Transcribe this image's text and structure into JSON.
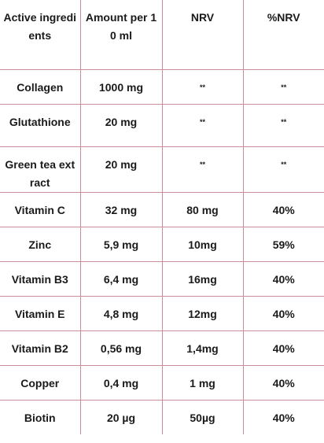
{
  "table": {
    "headers": [
      "Active ingredients",
      "Amount per 10 ml",
      "NRV",
      "%NRV"
    ],
    "rows": [
      [
        "Collagen",
        "1000 mg",
        "**",
        "**"
      ],
      [
        "Glutathione",
        "20 mg",
        "**",
        "**"
      ],
      [
        "Green tea extract",
        "20 mg",
        "**",
        "**"
      ],
      [
        "Vitamin C",
        "32 mg",
        "80 mg",
        "40%"
      ],
      [
        "Zinc",
        "5,9 mg",
        "10mg",
        "59%"
      ],
      [
        "Vitamin B3",
        "6,4 mg",
        "16mg",
        "40%"
      ],
      [
        "Vitamin E",
        "4,8 mg",
        "12mg",
        "40%"
      ],
      [
        "Vitamin B2",
        "0,56 mg",
        "1,4mg",
        "40%"
      ],
      [
        "Copper",
        "0,4 mg",
        "1 mg",
        "40%"
      ],
      [
        "Biotin",
        "20 µg",
        "50µg",
        "40%"
      ]
    ]
  },
  "colors": {
    "border": "#c98c9a",
    "text": "#1a1a1a",
    "background": "#ffffff"
  }
}
